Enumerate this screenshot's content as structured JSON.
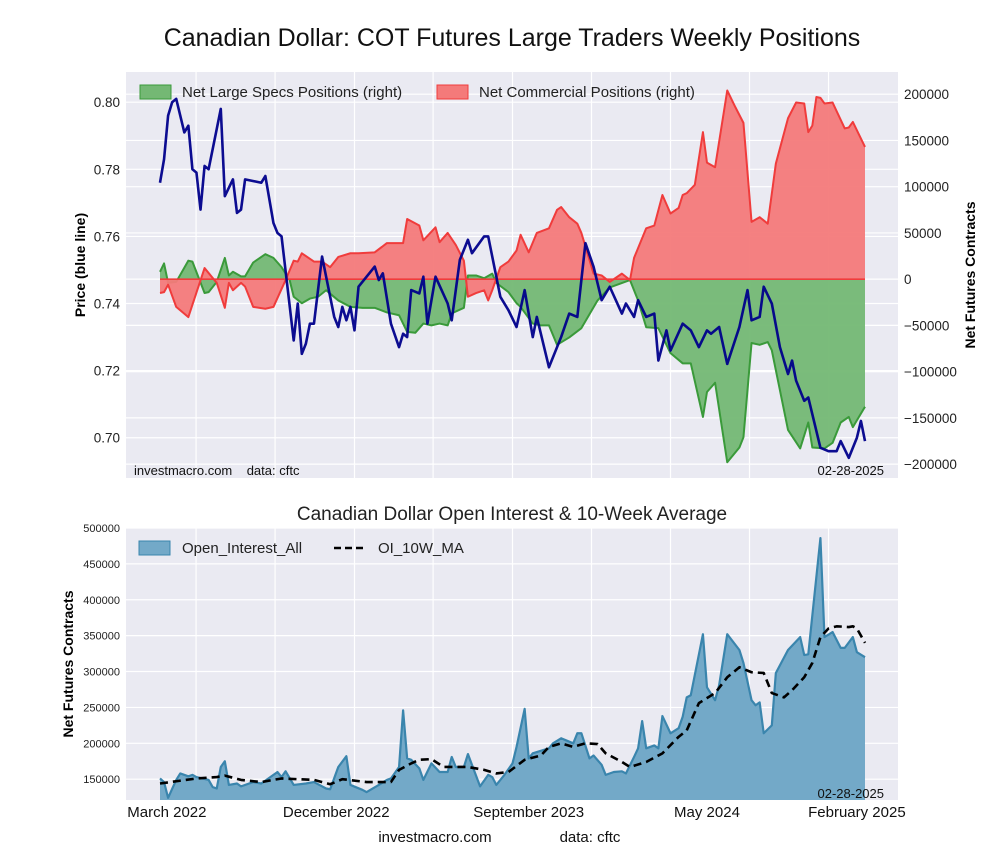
{
  "title": "Canadian Dollar: COT Futures Large Traders Weekly Positions",
  "subtitle": "Canadian Dollar Open Interest & 10-Week Average",
  "footer": {
    "site": "investmacro.com",
    "source": "data: cftc"
  },
  "colors": {
    "background": "#eaeaf2",
    "price": "#00008b",
    "specs_fill": "#74b874",
    "specs_line": "#3a9a3a",
    "comm_fill": "#f47a7a",
    "comm_line": "#f03c3c",
    "oi_fill": "#73a9c8",
    "oi_line": "#3a85ad",
    "ma_line": "#000000"
  },
  "chart_data": [
    {
      "type": "line+area",
      "x_unit": "week index",
      "xlim": [
        0,
        174
      ],
      "gridline_weeks": [
        8.9,
        28.4,
        48,
        67.4,
        87,
        106.5,
        126,
        145.5,
        165
      ],
      "ylabel": "Price (blue line)",
      "ylabel_right": "Net Futures Contracts",
      "ylim": [
        0.688,
        0.809
      ],
      "ylim_right": [
        -215000,
        224000
      ],
      "yticks": [
        0.7,
        0.72,
        0.74,
        0.76,
        0.78,
        0.8
      ],
      "ytick_labels": [
        "0.70",
        "0.72",
        "0.74",
        "0.76",
        "0.78",
        "0.80"
      ],
      "yticks_right": [
        -200000,
        -150000,
        -100000,
        -50000,
        0,
        50000,
        100000,
        150000,
        200000
      ],
      "ytick_labels_right": [
        "−200000",
        "−150000",
        "−100000",
        "−50000",
        "0",
        "50000",
        "100000",
        "150000",
        "200000"
      ],
      "legend": [
        "Net Large Specs Positions (right)",
        "Net Commercial Positions (right)"
      ],
      "legend_placement": "top-left",
      "annotation_left": "investmacro.com    data: cftc",
      "annotation_right": "02-28-2025",
      "series": [
        {
          "name": "Price",
          "axis": "left",
          "x": [
            0,
            1,
            2,
            3,
            4,
            6,
            7,
            8,
            9,
            10,
            11,
            12,
            15,
            16,
            18,
            19,
            20,
            21,
            25,
            26,
            28,
            29,
            30,
            33,
            34,
            35,
            36,
            37,
            38,
            40,
            43,
            44,
            45,
            46,
            47,
            48,
            49,
            53,
            54,
            55,
            57,
            59,
            60,
            61,
            62,
            64,
            65,
            66,
            68,
            71,
            72,
            74,
            76,
            77,
            80,
            81,
            84,
            86,
            88,
            90,
            92,
            93,
            96,
            99,
            101,
            103,
            105,
            107,
            109,
            111,
            114,
            115,
            117,
            118,
            120,
            122,
            123,
            125,
            126,
            129,
            131,
            133,
            135,
            136,
            138,
            140,
            143,
            145,
            146,
            148,
            149,
            151,
            153,
            155,
            156,
            157,
            159,
            160,
            163,
            165,
            167,
            168,
            170,
            172,
            173,
            174
          ],
          "y": [
            0.776,
            0.783,
            0.796,
            0.8,
            0.801,
            0.791,
            0.793,
            0.78,
            0.779,
            0.768,
            0.781,
            0.78,
            0.798,
            0.772,
            0.777,
            0.767,
            0.768,
            0.777,
            0.776,
            0.778,
            0.764,
            0.761,
            0.76,
            0.729,
            0.74,
            0.725,
            0.728,
            0.734,
            0.734,
            0.754,
            0.736,
            0.733,
            0.739,
            0.735,
            0.739,
            0.732,
            0.745,
            0.751,
            0.747,
            0.749,
            0.734,
            0.727,
            0.731,
            0.73,
            0.744,
            0.743,
            0.748,
            0.734,
            0.748,
            0.74,
            0.735,
            0.753,
            0.759,
            0.755,
            0.76,
            0.76,
            0.742,
            0.738,
            0.733,
            0.744,
            0.73,
            0.736,
            0.721,
            0.73,
            0.737,
            0.736,
            0.758,
            0.751,
            0.741,
            0.745,
            0.737,
            0.74,
            0.736,
            0.741,
            0.736,
            0.737,
            0.723,
            0.732,
            0.726,
            0.734,
            0.732,
            0.727,
            0.732,
            0.731,
            0.733,
            0.722,
            0.733,
            0.744,
            0.735,
            0.736,
            0.745,
            0.74,
            0.727,
            0.719,
            0.723,
            0.717,
            0.711,
            0.712,
            0.697,
            0.696,
            0.696,
            0.699,
            0.694,
            0.7,
            0.705,
            0.699
          ]
        },
        {
          "name": "Net Large Specs Positions (right)",
          "axis": "right",
          "x": [
            0,
            1,
            2,
            4,
            7,
            8,
            11,
            12,
            14,
            16,
            17,
            18,
            20,
            21,
            23,
            26,
            28,
            30,
            32,
            33,
            35,
            37,
            39,
            41,
            44,
            47,
            50,
            53,
            56,
            59,
            61,
            63,
            65,
            67,
            69,
            71,
            72,
            75,
            76,
            78,
            80,
            82,
            83,
            86,
            88,
            89,
            92,
            94,
            96,
            98,
            101,
            104,
            108,
            111,
            116,
            118,
            120,
            123,
            126,
            129,
            131,
            134,
            135,
            137,
            140,
            143,
            144,
            146,
            148,
            150,
            151,
            155,
            158,
            160,
            161,
            164,
            166,
            168,
            170,
            171,
            174
          ],
          "y": [
            8000,
            17000,
            -4000,
            -3000,
            20000,
            19000,
            -15000,
            -14000,
            -3000,
            23000,
            4000,
            8000,
            3000,
            3000,
            18000,
            27000,
            23000,
            13000,
            -1000,
            -19000,
            -26000,
            -21000,
            -19000,
            -12000,
            -23000,
            -30000,
            -31000,
            -31000,
            -36000,
            -39000,
            -57000,
            -58000,
            -48000,
            -50000,
            -48000,
            -50000,
            -37000,
            -31000,
            4000,
            4000,
            1000,
            6000,
            -4000,
            -14000,
            -26000,
            -30000,
            -48000,
            -50000,
            -50000,
            -71000,
            -63000,
            -53000,
            -23000,
            -9000,
            -1000,
            -23000,
            -52000,
            -53000,
            -80000,
            -91000,
            -91000,
            -149000,
            -122000,
            -112000,
            -198000,
            -182000,
            -171000,
            -69000,
            -71000,
            -68000,
            -77000,
            -163000,
            -183000,
            -155000,
            -182000,
            -183000,
            -177000,
            -155000,
            -149000,
            -160000,
            -138000
          ]
        },
        {
          "name": "Net Commercial Positions (right)",
          "axis": "right",
          "x": [
            0,
            1,
            2,
            4,
            7,
            11,
            14,
            16,
            17,
            18,
            20,
            21,
            23,
            26,
            28,
            31,
            33,
            34,
            35,
            38,
            40,
            42,
            44,
            47,
            49,
            53,
            56,
            60,
            61,
            64,
            65,
            68,
            69,
            71,
            73,
            75,
            76,
            78,
            80,
            81,
            82,
            84,
            86,
            88,
            89,
            91,
            93,
            96,
            98,
            99,
            101,
            103,
            104,
            107,
            109,
            111,
            114,
            116,
            117,
            120,
            122,
            124,
            126,
            128,
            129,
            130,
            132,
            134,
            135,
            137,
            140,
            142,
            144,
            146,
            148,
            150,
            152,
            155,
            157,
            159,
            160,
            161,
            162,
            163,
            164,
            166,
            169,
            170,
            171,
            174
          ],
          "y": [
            -15000,
            -14000,
            -6000,
            -30000,
            -41000,
            12000,
            -4000,
            -31000,
            -4000,
            -12000,
            -4000,
            -8000,
            -30000,
            -32000,
            -30000,
            -1000,
            20000,
            19000,
            28000,
            19000,
            19000,
            13000,
            24000,
            28000,
            28000,
            29000,
            39000,
            39000,
            65000,
            58000,
            42000,
            56000,
            40000,
            50000,
            37000,
            20000,
            -19000,
            -15000,
            -12000,
            -23000,
            -12000,
            13000,
            19000,
            31000,
            48000,
            29000,
            50000,
            55000,
            75000,
            78000,
            67000,
            60000,
            50000,
            6000,
            4000,
            -3000,
            6000,
            -1000,
            23000,
            55000,
            58000,
            91000,
            71000,
            77000,
            91000,
            93000,
            102000,
            159000,
            126000,
            121000,
            204000,
            186000,
            169000,
            62000,
            67000,
            60000,
            125000,
            174000,
            191000,
            190000,
            159000,
            166000,
            197000,
            196000,
            190000,
            191000,
            163000,
            164000,
            170000,
            143000
          ]
        }
      ]
    },
    {
      "type": "area+line",
      "title": "Canadian Dollar Open Interest & 10-Week Average",
      "x_unit": "week index",
      "xlim": [
        0,
        174
      ],
      "gridline_weeks": [
        8.9,
        28.4,
        48,
        67.4,
        87,
        106.5,
        126,
        145.5,
        165
      ],
      "xticks": [
        1.7,
        43.5,
        91,
        135,
        172
      ],
      "xtick_labels": [
        "March 2022",
        "December 2022",
        "September 2023",
        "May 2024",
        "February 2025"
      ],
      "ylabel": "Net Futures Contracts",
      "ylim": [
        121000,
        500000
      ],
      "yticks": [
        150000,
        200000,
        250000,
        300000,
        350000,
        400000,
        450000,
        500000
      ],
      "ytick_labels": [
        "150000",
        "200000",
        "250000",
        "300000",
        "350000",
        "400000",
        "450000",
        "500000"
      ],
      "legend": [
        "Open_Interest_All",
        "OI_10W_MA"
      ],
      "legend_placement": "top-left",
      "annotation_right": "02-28-2025",
      "series": [
        {
          "name": "Open_Interest_All",
          "x": [
            0,
            1,
            2,
            4,
            5,
            7,
            8,
            9,
            12,
            13,
            14,
            15,
            16,
            17,
            19,
            20,
            23,
            25,
            29,
            30,
            31,
            33,
            36,
            38,
            41,
            42,
            44,
            46,
            47,
            50,
            51,
            54,
            56,
            57,
            59,
            60,
            61,
            62,
            64,
            65,
            67,
            69,
            71,
            72,
            73,
            75,
            76,
            79,
            81,
            82,
            83,
            85,
            87,
            88,
            90,
            91,
            92,
            96,
            97,
            99,
            102,
            103,
            104,
            106,
            107,
            109,
            110,
            112,
            114,
            115,
            117,
            118,
            119,
            120,
            122,
            123,
            124,
            126,
            128,
            129,
            130,
            131,
            134,
            135,
            137,
            138,
            140,
            143,
            144,
            146,
            147,
            148,
            149,
            151,
            152,
            155,
            158,
            159,
            160,
            163,
            164,
            166,
            168,
            169,
            171,
            172,
            174
          ],
          "y": [
            151000,
            146000,
            124000,
            149000,
            158000,
            154000,
            156000,
            153000,
            149000,
            139000,
            137000,
            167000,
            175000,
            142000,
            144000,
            140000,
            146000,
            144000,
            160000,
            153000,
            161000,
            142000,
            144000,
            146000,
            137000,
            136000,
            167000,
            182000,
            142000,
            135000,
            132000,
            142000,
            149000,
            151000,
            167000,
            246000,
            179000,
            177000,
            165000,
            149000,
            172000,
            160000,
            160000,
            181000,
            167000,
            167000,
            185000,
            140000,
            156000,
            153000,
            142000,
            156000,
            172000,
            195000,
            248000,
            179000,
            186000,
            193000,
            200000,
            207000,
            200000,
            214000,
            214000,
            179000,
            183000,
            170000,
            156000,
            160000,
            161000,
            158000,
            181000,
            193000,
            231000,
            193000,
            197000,
            193000,
            238000,
            214000,
            221000,
            237000,
            264000,
            267000,
            352000,
            278000,
            260000,
            281000,
            352000,
            330000,
            312000,
            260000,
            253000,
            257000,
            214000,
            225000,
            298000,
            330000,
            348000,
            323000,
            324000,
            486000,
            348000,
            355000,
            333000,
            333000,
            348000,
            327000,
            320000
          ]
        },
        {
          "name": "OI_10W_MA",
          "style": "dashed",
          "x": [
            0,
            9,
            14,
            16,
            20,
            25,
            30,
            38,
            42,
            45,
            51,
            57,
            59,
            62,
            64,
            67,
            70,
            76,
            80,
            83,
            86,
            90,
            94,
            96,
            99,
            102,
            105,
            108,
            110,
            114,
            116,
            120,
            124,
            128,
            130,
            133,
            137,
            140,
            143,
            146,
            149,
            151,
            154,
            156,
            159,
            161,
            163,
            165,
            167,
            170,
            171,
            172,
            174
          ],
          "y": [
            144000,
            151000,
            153000,
            155000,
            149000,
            146000,
            151000,
            149000,
            143000,
            150000,
            146000,
            146000,
            163000,
            172000,
            177000,
            178000,
            167000,
            167000,
            163000,
            158000,
            160000,
            177000,
            183000,
            195000,
            200000,
            195000,
            200000,
            199000,
            186000,
            174000,
            167000,
            174000,
            186000,
            209000,
            218000,
            256000,
            270000,
            292000,
            306000,
            299000,
            298000,
            270000,
            264000,
            274000,
            292000,
            312000,
            348000,
            360000,
            363000,
            362000,
            363000,
            360000,
            340000
          ]
        }
      ]
    }
  ]
}
